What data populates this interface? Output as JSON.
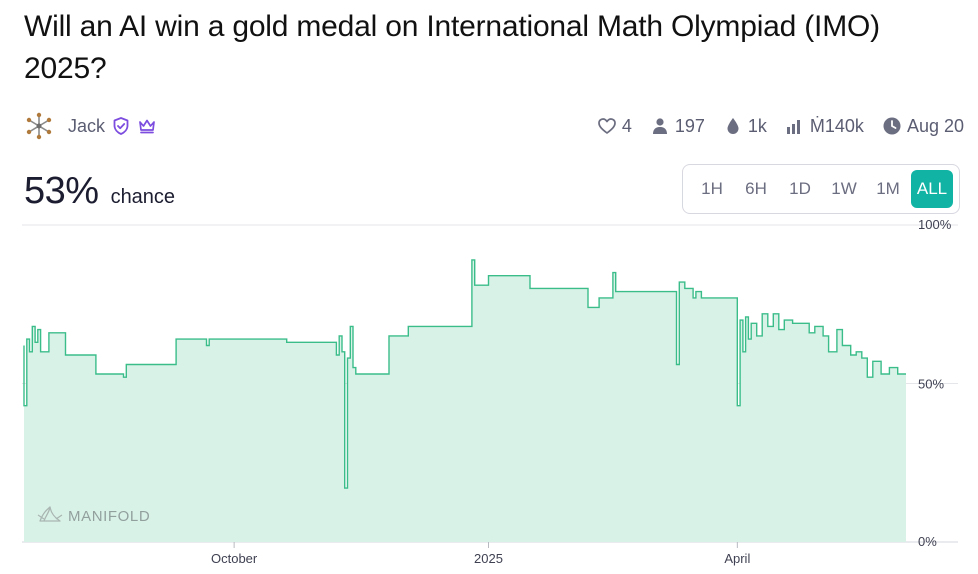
{
  "market": {
    "title": "Will an AI win a gold medal on International Math Olympiad (IMO) 2025?"
  },
  "author": {
    "name": "Jack",
    "avatar_icon": "snowflake-avatar-icon",
    "badges": [
      "verified-shield-icon",
      "crown-icon"
    ],
    "badge_color": "#7c4ddf"
  },
  "stats": {
    "likes": "4",
    "traders": "197",
    "liquidity": "1k",
    "volume": "Ṁ140k",
    "close_date": "Aug 20"
  },
  "probability": {
    "value": "53%",
    "label": "chance"
  },
  "time_ranges": {
    "options": [
      "1H",
      "6H",
      "1D",
      "1W",
      "1M",
      "ALL"
    ],
    "selected": "ALL"
  },
  "colors": {
    "accent": "#11b4a4",
    "line": "#3bbd8a",
    "fill": "#d9f2e8",
    "text_muted": "#5b5d72"
  },
  "watermark": "MANIFOLD",
  "chart_data": {
    "type": "area",
    "y_unit": "%",
    "ylim": [
      0,
      100
    ],
    "y_tick_labels": [
      "100%",
      "50%",
      "0%"
    ],
    "y_ticks": [
      100,
      50,
      0
    ],
    "x_tick_labels": [
      "October",
      "2025",
      "April"
    ],
    "xlim": [
      "2024-07-17",
      "2025-06-01"
    ],
    "x_ticks": [
      "2024-10-01",
      "2025-01-01",
      "2025-04-01"
    ],
    "grid": true,
    "series": [
      {
        "points": [
          [
            "2024-07-17",
            62
          ],
          [
            "2024-07-17",
            43
          ],
          [
            "2024-07-18",
            64
          ],
          [
            "2024-07-19",
            60
          ],
          [
            "2024-07-20",
            68
          ],
          [
            "2024-07-21",
            63
          ],
          [
            "2024-07-22",
            67
          ],
          [
            "2024-07-23",
            60
          ],
          [
            "2024-07-26",
            66
          ],
          [
            "2024-07-31",
            66
          ],
          [
            "2024-08-01",
            59
          ],
          [
            "2024-08-10",
            59
          ],
          [
            "2024-08-12",
            53
          ],
          [
            "2024-08-21",
            53
          ],
          [
            "2024-08-22",
            52
          ],
          [
            "2024-08-23",
            56
          ],
          [
            "2024-09-09",
            56
          ],
          [
            "2024-09-10",
            64
          ],
          [
            "2024-09-20",
            64
          ],
          [
            "2024-09-21",
            62
          ],
          [
            "2024-09-22",
            64
          ],
          [
            "2024-10-18",
            64
          ],
          [
            "2024-10-20",
            63
          ],
          [
            "2024-11-05",
            63
          ],
          [
            "2024-11-07",
            59
          ],
          [
            "2024-11-08",
            65
          ],
          [
            "2024-11-09",
            60
          ],
          [
            "2024-11-10",
            17
          ],
          [
            "2024-11-11",
            58
          ],
          [
            "2024-11-12",
            68
          ],
          [
            "2024-11-13",
            55
          ],
          [
            "2024-11-14",
            53
          ],
          [
            "2024-11-25",
            53
          ],
          [
            "2024-11-26",
            65
          ],
          [
            "2024-12-01",
            65
          ],
          [
            "2024-12-03",
            68
          ],
          [
            "2024-12-25",
            68
          ],
          [
            "2024-12-26",
            89
          ],
          [
            "2024-12-27",
            81
          ],
          [
            "2025-01-01",
            81
          ],
          [
            "2025-01-01",
            84
          ],
          [
            "2025-01-15",
            84
          ],
          [
            "2025-01-16",
            80
          ],
          [
            "2025-02-05",
            80
          ],
          [
            "2025-02-06",
            74
          ],
          [
            "2025-02-09",
            74
          ],
          [
            "2025-02-10",
            77
          ],
          [
            "2025-02-14",
            77
          ],
          [
            "2025-02-15",
            85
          ],
          [
            "2025-02-16",
            79
          ],
          [
            "2025-03-09",
            79
          ],
          [
            "2025-03-10",
            56
          ],
          [
            "2025-03-11",
            82
          ],
          [
            "2025-03-13",
            80
          ],
          [
            "2025-03-16",
            77
          ],
          [
            "2025-03-17",
            79
          ],
          [
            "2025-03-19",
            77
          ],
          [
            "2025-03-31",
            77
          ],
          [
            "2025-04-01",
            43
          ],
          [
            "2025-04-02",
            70
          ],
          [
            "2025-04-03",
            60
          ],
          [
            "2025-04-04",
            71
          ],
          [
            "2025-04-05",
            64
          ],
          [
            "2025-04-06",
            69
          ],
          [
            "2025-04-08",
            65
          ],
          [
            "2025-04-10",
            72
          ],
          [
            "2025-04-12",
            68
          ],
          [
            "2025-04-14",
            72
          ],
          [
            "2025-04-16",
            67
          ],
          [
            "2025-04-18",
            70
          ],
          [
            "2025-04-21",
            69
          ],
          [
            "2025-04-25",
            69
          ],
          [
            "2025-04-27",
            66
          ],
          [
            "2025-04-29",
            68
          ],
          [
            "2025-05-02",
            65
          ],
          [
            "2025-05-04",
            60
          ],
          [
            "2025-05-07",
            67
          ],
          [
            "2025-05-09",
            62
          ],
          [
            "2025-05-12",
            59
          ],
          [
            "2025-05-14",
            60
          ],
          [
            "2025-05-16",
            58
          ],
          [
            "2025-05-18",
            52
          ],
          [
            "2025-05-20",
            57
          ],
          [
            "2025-05-23",
            53
          ],
          [
            "2025-05-26",
            55
          ],
          [
            "2025-05-29",
            53
          ],
          [
            "2025-06-01",
            53
          ]
        ]
      }
    ]
  }
}
